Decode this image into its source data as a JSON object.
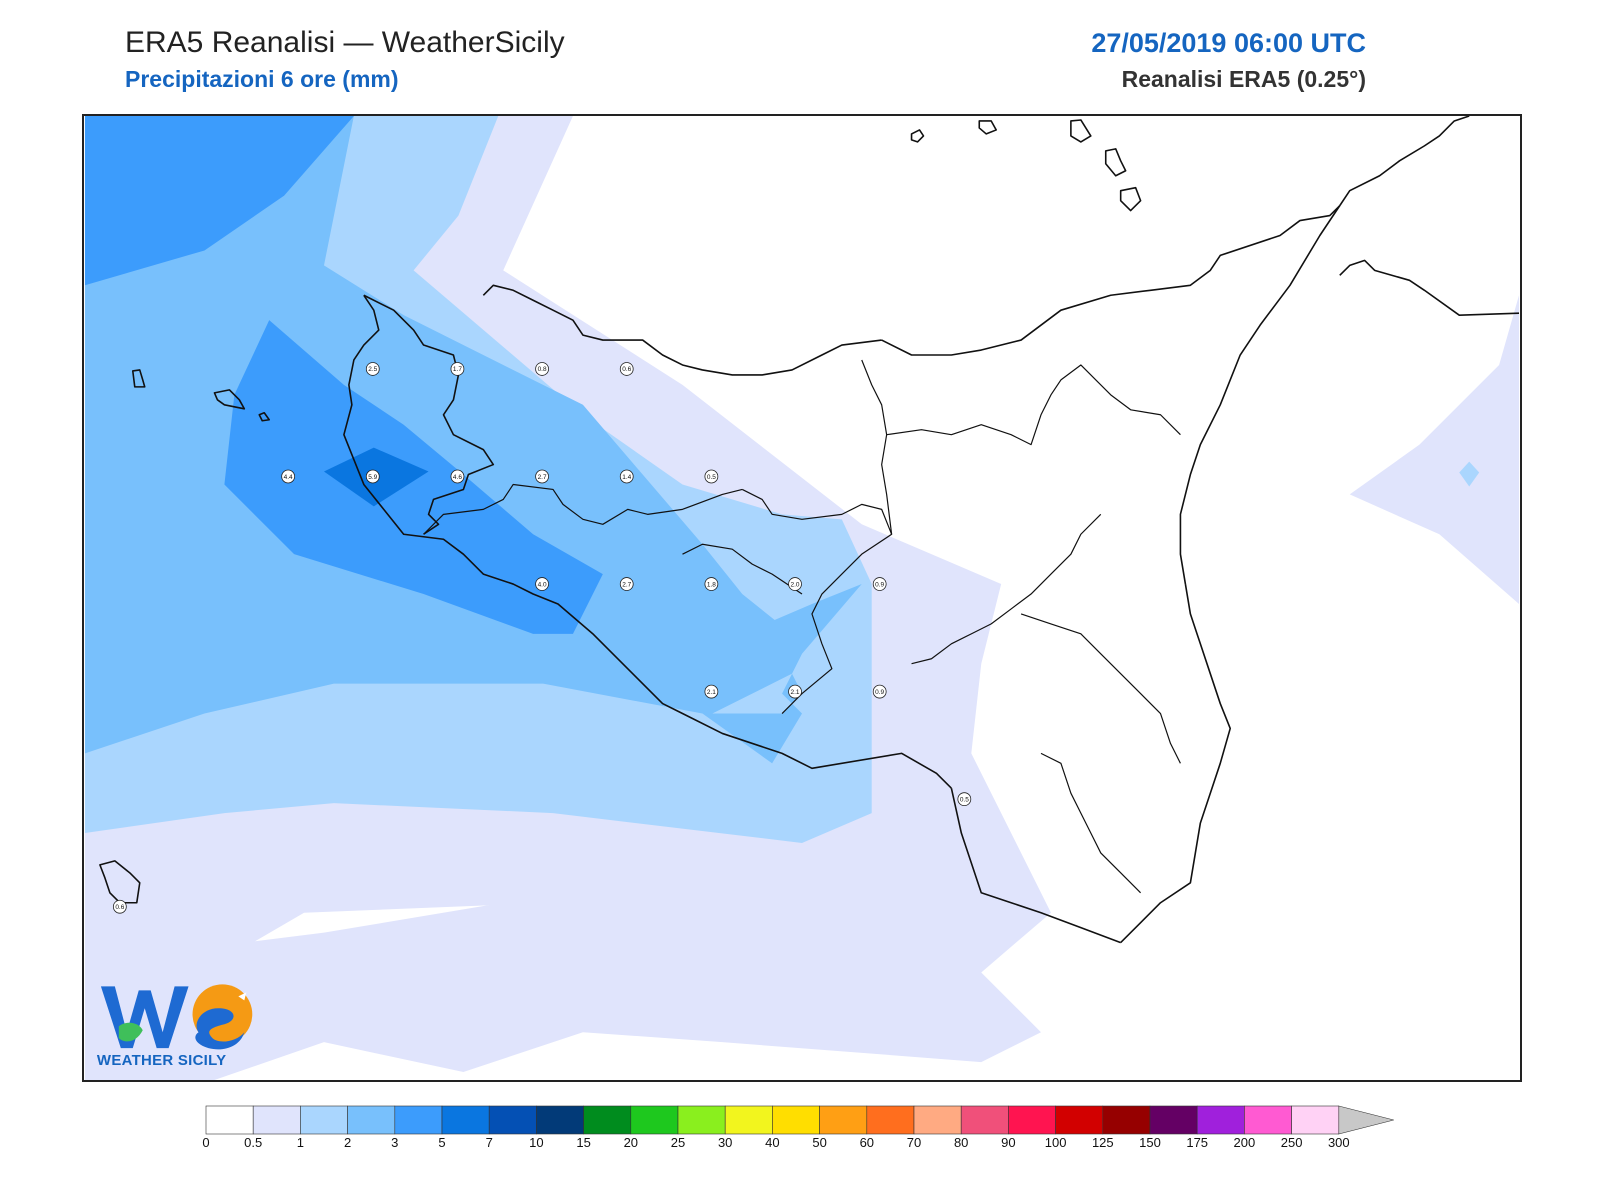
{
  "header": {
    "title": "ERA5 Reanalisi — WeatherSicily",
    "subtitle": "Precipitazioni 6 ore (mm)",
    "datetime": "27/05/2019 06:00 UTC",
    "source": "Reanalisi ERA5 (0.25°)"
  },
  "logo": {
    "text": "WEATHER SICILY",
    "monogram": "WS"
  },
  "colorbar": {
    "levels": [
      "0",
      "0.5",
      "1",
      "2",
      "3",
      "5",
      "7",
      "10",
      "15",
      "20",
      "25",
      "30",
      "40",
      "50",
      "60",
      "70",
      "80",
      "90",
      "100",
      "125",
      "150",
      "175",
      "200",
      "250",
      "300"
    ],
    "colors": [
      "#ffffff",
      "#e0e4fc",
      "#aad6fe",
      "#78c0fc",
      "#3c9cfc",
      "#0a76e0",
      "#0450b4",
      "#023a78",
      "#008c1e",
      "#1ec81e",
      "#8aef1e",
      "#f2f51e",
      "#ffde00",
      "#ff9f14",
      "#ff6e1e",
      "#ffaa82",
      "#f0507a",
      "#ff1450",
      "#d20000",
      "#960000",
      "#640064",
      "#a020dc",
      "#ff5ad2",
      "#ffd2f5"
    ],
    "extend_color": "#c8c8c8"
  },
  "values": [
    {
      "label": "2.5"
    },
    {
      "label": "1.7"
    },
    {
      "label": "0.8"
    },
    {
      "label": "0.6"
    },
    {
      "label": "4.4"
    },
    {
      "label": "5.9"
    },
    {
      "label": "4.6"
    },
    {
      "label": "2.7"
    },
    {
      "label": "1.4"
    },
    {
      "label": "0.5"
    },
    {
      "label": "4.0"
    },
    {
      "label": "2.7"
    },
    {
      "label": "1.8"
    },
    {
      "label": "2.0"
    },
    {
      "label": "0.9"
    },
    {
      "label": "2.1"
    },
    {
      "label": "2.1"
    },
    {
      "label": "0.9"
    },
    {
      "label": "0.5"
    },
    {
      "label": "0.6"
    }
  ]
}
